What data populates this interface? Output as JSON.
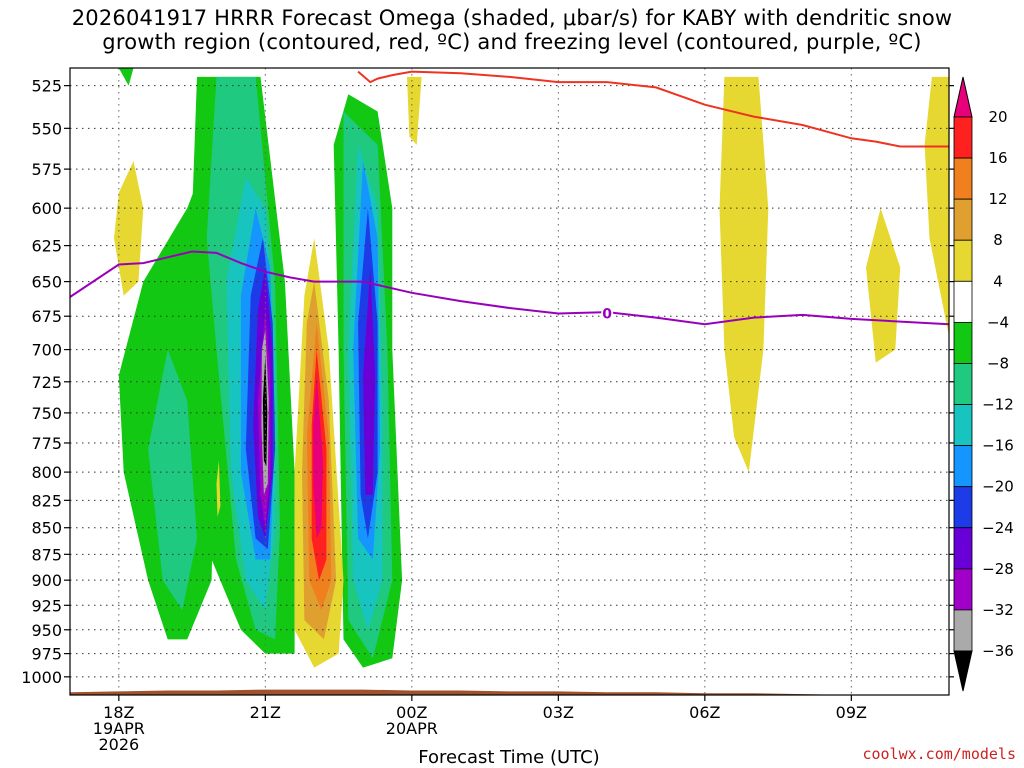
{
  "title_line1": "2026041917 HRRR Forecast Omega (shaded, μbar/s) for KABY with dendritic snow",
  "title_line2": "growth region (contoured, red, ºC) and freezing level (contoured, purple, ºC)",
  "credit": "coolwx.com/models",
  "chart_data": {
    "type": "heatmap",
    "title": "2026041917 HRRR Forecast Omega (shaded, μbar/s) for KABY with dendritic snow growth region (contoured, red, ºC) and freezing level (contoured, purple, ºC)",
    "xlabel": "Forecast Time (UTC)",
    "ylabel": "",
    "xlim_hours_after_17Z": [
      0,
      18
    ],
    "ylim": [
      1020,
      515
    ],
    "y_scale": "log-pressure",
    "grid": true,
    "x_ticks": [
      {
        "hour": 1,
        "lines": [
          "18Z",
          "19APR",
          "2026"
        ]
      },
      {
        "hour": 4,
        "lines": [
          "21Z"
        ]
      },
      {
        "hour": 7,
        "lines": [
          "00Z",
          "20APR"
        ]
      },
      {
        "hour": 10,
        "lines": [
          "03Z"
        ]
      },
      {
        "hour": 13,
        "lines": [
          "06Z"
        ]
      },
      {
        "hour": 16,
        "lines": [
          "09Z"
        ]
      }
    ],
    "y_ticks": [
      525,
      550,
      575,
      600,
      625,
      650,
      675,
      700,
      725,
      750,
      775,
      800,
      825,
      850,
      875,
      900,
      925,
      950,
      975,
      1000
    ],
    "colorbar": {
      "levels": [
        -36,
        -32,
        -28,
        -24,
        -20,
        -16,
        -12,
        -8,
        -4,
        4,
        8,
        12,
        16,
        20
      ],
      "labels": [
        "20",
        "16",
        "12",
        "8",
        "4",
        "−4",
        "−8",
        "−12",
        "−16",
        "−20",
        "−24",
        "−28",
        "−32",
        "−36"
      ],
      "colors": [
        "#e8007a",
        "#ff2020",
        "#f07f1e",
        "#e0a030",
        "#e6d830",
        "#ffffff",
        "#12c812",
        "#1fca80",
        "#17c4c0",
        "#1596ff",
        "#1d3ce8",
        "#6a00d8",
        "#a000c8",
        "#aaaaaa",
        "#000000"
      ]
    },
    "omega_regions": [
      {
        "name": "green-band-left",
        "color": "#12c812",
        "points": [
          [
            2.9,
            670
          ],
          [
            3.2,
            650
          ],
          [
            3.0,
            700
          ],
          [
            2.9,
            900
          ],
          [
            2.4,
            960
          ],
          [
            2.0,
            960
          ],
          [
            1.6,
            900
          ],
          [
            1.1,
            800
          ],
          [
            1.0,
            720
          ],
          [
            1.5,
            650
          ],
          [
            2.4,
            600
          ],
          [
            2.9,
            560
          ],
          [
            2.9,
            520
          ]
        ]
      },
      {
        "name": "green-band-main",
        "color": "#12c812",
        "points": [
          [
            2.6,
            520
          ],
          [
            3.9,
            520
          ],
          [
            4.4,
            650
          ],
          [
            4.6,
            800
          ],
          [
            4.6,
            975
          ],
          [
            4.0,
            975
          ],
          [
            3.5,
            950
          ],
          [
            2.9,
            880
          ],
          [
            2.4,
            700
          ]
        ]
      },
      {
        "name": "green-band-right",
        "color": "#12c812",
        "points": [
          [
            5.7,
            530
          ],
          [
            6.3,
            540
          ],
          [
            6.6,
            600
          ],
          [
            6.6,
            700
          ],
          [
            6.8,
            900
          ],
          [
            6.6,
            980
          ],
          [
            6.0,
            990
          ],
          [
            5.6,
            960
          ],
          [
            5.5,
            700
          ],
          [
            5.4,
            560
          ]
        ]
      },
      {
        "name": "seafoam-main",
        "color": "#1fca80",
        "points": [
          [
            3.0,
            520
          ],
          [
            3.8,
            520
          ],
          [
            4.2,
            650
          ],
          [
            4.3,
            850
          ],
          [
            4.2,
            960
          ],
          [
            3.8,
            950
          ],
          [
            3.4,
            880
          ],
          [
            3.0,
            700
          ],
          [
            2.8,
            620
          ]
        ]
      },
      {
        "name": "seafoam-left",
        "color": "#1fca80",
        "points": [
          [
            2.0,
            700
          ],
          [
            2.4,
            740
          ],
          [
            2.6,
            860
          ],
          [
            2.3,
            930
          ],
          [
            1.9,
            900
          ],
          [
            1.6,
            780
          ]
        ]
      },
      {
        "name": "seafoam-right",
        "color": "#1fca80",
        "points": [
          [
            5.6,
            540
          ],
          [
            6.3,
            560
          ],
          [
            6.5,
            700
          ],
          [
            6.6,
            900
          ],
          [
            6.2,
            980
          ],
          [
            5.7,
            940
          ],
          [
            5.6,
            700
          ]
        ]
      },
      {
        "name": "cyan-main",
        "color": "#17c4c0",
        "points": [
          [
            3.6,
            580
          ],
          [
            4.0,
            600
          ],
          [
            4.2,
            700
          ],
          [
            4.2,
            850
          ],
          [
            4.0,
            930
          ],
          [
            3.6,
            900
          ],
          [
            3.3,
            800
          ],
          [
            3.2,
            650
          ]
        ]
      },
      {
        "name": "cyan-right",
        "color": "#17c4c0",
        "points": [
          [
            5.9,
            560
          ],
          [
            6.3,
            600
          ],
          [
            6.4,
            750
          ],
          [
            6.4,
            900
          ],
          [
            6.1,
            950
          ],
          [
            5.8,
            900
          ],
          [
            5.7,
            700
          ]
        ]
      },
      {
        "name": "blue-main",
        "color": "#1596ff",
        "points": [
          [
            3.8,
            600
          ],
          [
            4.1,
            640
          ],
          [
            4.2,
            760
          ],
          [
            4.1,
            880
          ],
          [
            3.8,
            880
          ],
          [
            3.5,
            800
          ],
          [
            3.5,
            660
          ]
        ]
      },
      {
        "name": "blue-right",
        "color": "#1596ff",
        "points": [
          [
            6.0,
            570
          ],
          [
            6.3,
            620
          ],
          [
            6.35,
            780
          ],
          [
            6.2,
            880
          ],
          [
            5.9,
            860
          ],
          [
            5.8,
            700
          ]
        ]
      },
      {
        "name": "darkblue-main",
        "color": "#1d3ce8",
        "points": [
          [
            3.95,
            620
          ],
          [
            4.15,
            680
          ],
          [
            4.2,
            780
          ],
          [
            4.05,
            870
          ],
          [
            3.8,
            860
          ],
          [
            3.6,
            780
          ],
          [
            3.7,
            660
          ]
        ]
      },
      {
        "name": "darkblue-right",
        "color": "#1d3ce8",
        "points": [
          [
            6.1,
            600
          ],
          [
            6.3,
            680
          ],
          [
            6.3,
            800
          ],
          [
            6.1,
            860
          ],
          [
            5.95,
            820
          ],
          [
            5.9,
            680
          ]
        ]
      },
      {
        "name": "indigo-main",
        "color": "#6a00d8",
        "points": [
          [
            4.0,
            640
          ],
          [
            4.15,
            700
          ],
          [
            4.15,
            800
          ],
          [
            4.0,
            860
          ],
          [
            3.85,
            840
          ],
          [
            3.75,
            760
          ],
          [
            3.85,
            670
          ]
        ]
      },
      {
        "name": "indigo-right",
        "color": "#6a00d8",
        "points": [
          [
            6.15,
            640
          ],
          [
            6.25,
            720
          ],
          [
            6.2,
            820
          ],
          [
            6.05,
            820
          ],
          [
            6.0,
            720
          ]
        ]
      },
      {
        "name": "magenta-main",
        "color": "#a000c8",
        "points": [
          [
            4.0,
            670
          ],
          [
            4.1,
            720
          ],
          [
            4.1,
            800
          ],
          [
            4.0,
            850
          ],
          [
            3.9,
            820
          ],
          [
            3.85,
            740
          ]
        ]
      },
      {
        "name": "gray-main",
        "color": "#aaaaaa",
        "points": [
          [
            4.0,
            685
          ],
          [
            4.07,
            740
          ],
          [
            4.05,
            810
          ],
          [
            3.97,
            820
          ],
          [
            3.92,
            760
          ],
          [
            3.93,
            700
          ]
        ]
      },
      {
        "name": "black-main",
        "color": "#000000",
        "points": [
          [
            4.0,
            705
          ],
          [
            4.04,
            750
          ],
          [
            4.02,
            795
          ],
          [
            3.97,
            790
          ],
          [
            3.95,
            740
          ]
        ]
      },
      {
        "name": "yellow-updraft",
        "color": "#e6d830",
        "points": [
          [
            5.0,
            620
          ],
          [
            5.3,
            700
          ],
          [
            5.6,
            900
          ],
          [
            5.5,
            975
          ],
          [
            5.0,
            990
          ],
          [
            4.6,
            950
          ],
          [
            4.6,
            800
          ],
          [
            4.8,
            660
          ]
        ]
      },
      {
        "name": "gold-updraft",
        "color": "#e0a030",
        "points": [
          [
            5.0,
            650
          ],
          [
            5.3,
            740
          ],
          [
            5.45,
            900
          ],
          [
            5.2,
            960
          ],
          [
            4.8,
            940
          ],
          [
            4.75,
            800
          ],
          [
            4.85,
            680
          ]
        ]
      },
      {
        "name": "orange-updraft",
        "color": "#f07f1e",
        "points": [
          [
            5.05,
            680
          ],
          [
            5.3,
            770
          ],
          [
            5.35,
            900
          ],
          [
            5.15,
            930
          ],
          [
            4.9,
            900
          ],
          [
            4.85,
            770
          ]
        ]
      },
      {
        "name": "red-updraft",
        "color": "#ff2020",
        "points": [
          [
            5.05,
            700
          ],
          [
            5.25,
            780
          ],
          [
            5.25,
            880
          ],
          [
            5.1,
            900
          ],
          [
            4.95,
            860
          ],
          [
            4.95,
            760
          ]
        ]
      },
      {
        "name": "pink-updraft",
        "color": "#e8007a",
        "points": [
          [
            5.05,
            720
          ],
          [
            5.18,
            790
          ],
          [
            5.15,
            850
          ],
          [
            5.05,
            860
          ],
          [
            4.98,
            810
          ],
          [
            4.98,
            760
          ]
        ]
      },
      {
        "name": "yellow-small-left",
        "color": "#e6d830",
        "points": [
          [
            1.0,
            590
          ],
          [
            1.3,
            570
          ],
          [
            1.5,
            600
          ],
          [
            1.4,
            650
          ],
          [
            1.1,
            660
          ],
          [
            0.9,
            620
          ]
        ]
      },
      {
        "name": "yellow-thin",
        "color": "#e6d830",
        "points": [
          [
            3.0,
            810
          ],
          [
            3.05,
            790
          ],
          [
            3.08,
            830
          ],
          [
            3.02,
            840
          ]
        ]
      },
      {
        "name": "yellow-top-mid",
        "color": "#e6d830",
        "points": [
          [
            6.9,
            520
          ],
          [
            7.2,
            520
          ],
          [
            7.1,
            560
          ],
          [
            6.95,
            555
          ]
        ]
      },
      {
        "name": "yellow-06z",
        "color": "#e6d830",
        "points": [
          [
            13.4,
            520
          ],
          [
            14.1,
            520
          ],
          [
            14.3,
            600
          ],
          [
            14.2,
            700
          ],
          [
            13.9,
            800
          ],
          [
            13.6,
            770
          ],
          [
            13.4,
            700
          ],
          [
            13.3,
            600
          ]
        ]
      },
      {
        "name": "yellow-09z",
        "color": "#e6d830",
        "points": [
          [
            16.6,
            600
          ],
          [
            17.0,
            640
          ],
          [
            16.9,
            700
          ],
          [
            16.5,
            710
          ],
          [
            16.3,
            640
          ]
        ]
      },
      {
        "name": "yellow-right-edge",
        "color": "#e6d830",
        "points": [
          [
            17.65,
            520
          ],
          [
            18.0,
            520
          ],
          [
            18.0,
            690
          ],
          [
            17.6,
            620
          ],
          [
            17.5,
            560
          ]
        ]
      },
      {
        "name": "green-topleft",
        "color": "#12c812",
        "points": [
          [
            1.0,
            515
          ],
          [
            1.3,
            515
          ],
          [
            1.2,
            525
          ]
        ]
      }
    ],
    "series": [
      {
        "name": "dendritic snow growth region (contoured, red, ºC)",
        "color": "#ee3322",
        "x": [
          5.9,
          6.15,
          6.3,
          6.6,
          7.0,
          8.0,
          9.0,
          10.0,
          11.0,
          12.0,
          13.0,
          14.0,
          15.0,
          16.0,
          16.5,
          17.0,
          18.0
        ],
        "y": [
          517,
          523,
          521,
          519,
          517,
          518,
          520,
          523,
          523,
          526,
          536,
          543,
          548,
          556,
          558,
          561,
          561
        ]
      },
      {
        "name": "freezing level (contoured, purple, ºC)",
        "color": "#9900bb",
        "x": [
          0.0,
          1.0,
          1.5,
          2.0,
          2.5,
          3.0,
          3.5,
          4.0,
          4.5,
          5.0,
          5.5,
          6.0,
          7.0,
          8.0,
          9.0,
          10.0,
          11.0,
          12.0,
          13.0,
          14.0,
          15.0,
          16.0,
          17.0,
          18.0
        ],
        "y": [
          661,
          638,
          637,
          633,
          629,
          630,
          637,
          643,
          647,
          650,
          650,
          650,
          658,
          664,
          669,
          673,
          672,
          676,
          681,
          676,
          674,
          677,
          679,
          681
        ]
      }
    ],
    "contour_label": {
      "text": "0",
      "x": 11.0,
      "y": 673
    },
    "ground": {
      "color": "#a0522d",
      "x": [
        0,
        1,
        2,
        3,
        4,
        5,
        6,
        7,
        8,
        9,
        10,
        11,
        12,
        13,
        14,
        15,
        16,
        17,
        18
      ],
      "y": [
        1017,
        1016,
        1015,
        1015,
        1014,
        1014,
        1014,
        1015,
        1015,
        1016,
        1016,
        1017,
        1017,
        1018,
        1018,
        1019,
        1020,
        1020,
        1020
      ]
    }
  }
}
